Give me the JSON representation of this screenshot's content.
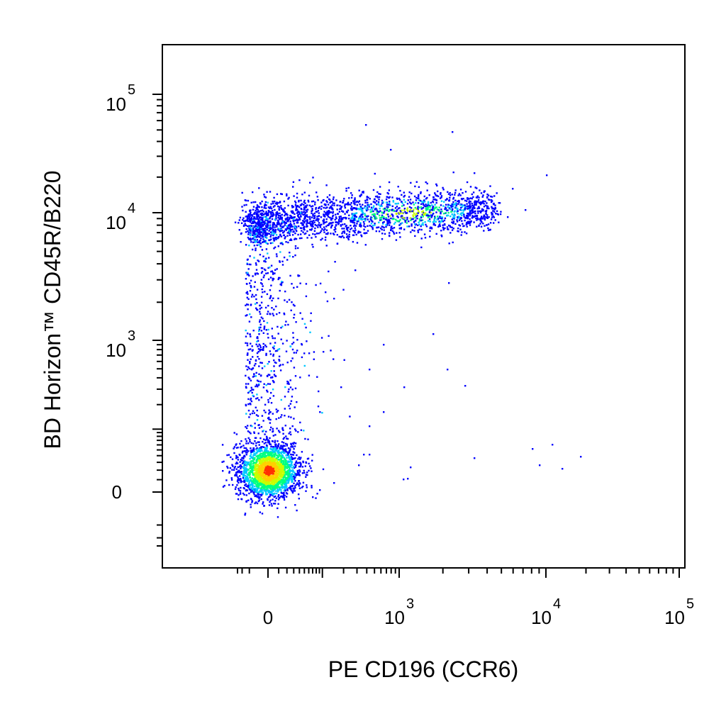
{
  "chart_data": {
    "type": "scatter",
    "subtype": "flow-cytometry-density-dot-plot",
    "xlabel": "PE CD196 (CCR6)",
    "ylabel": "BD Horizon™ CD45R/B220",
    "x_scale": "biexponential",
    "y_scale": "biexponential",
    "grid": false,
    "legend": "none",
    "x_ticks": [
      {
        "value": 0,
        "base": "0",
        "exp": ""
      },
      {
        "value": 1000,
        "base": "10",
        "exp": "3"
      },
      {
        "value": 10000,
        "base": "10",
        "exp": "4"
      },
      {
        "value": 100000,
        "base": "10",
        "exp": "5"
      }
    ],
    "y_ticks": [
      {
        "value": 0,
        "base": "0",
        "exp": ""
      },
      {
        "value": 1000,
        "base": "10",
        "exp": "3"
      },
      {
        "value": 10000,
        "base": "10",
        "exp": "4"
      },
      {
        "value": 100000,
        "base": "10",
        "exp": "5"
      }
    ],
    "density_colors": [
      "#0000ff",
      "#00c8ff",
      "#00ff80",
      "#c8ff00",
      "#ffd000",
      "#ff3000"
    ],
    "populations": [
      {
        "description": "double-low cluster",
        "x_center": 0,
        "y_center": 20,
        "peak_density": "high"
      },
      {
        "description": "B220-high band",
        "x_range": [
          0,
          5000
        ],
        "y_center": 9000,
        "peak_x": 1000,
        "peak_density": "medium"
      },
      {
        "description": "transition cells",
        "x_range": [
          0,
          2000
        ],
        "y_range": [
          200,
          6000
        ],
        "peak_density": "low"
      }
    ]
  }
}
